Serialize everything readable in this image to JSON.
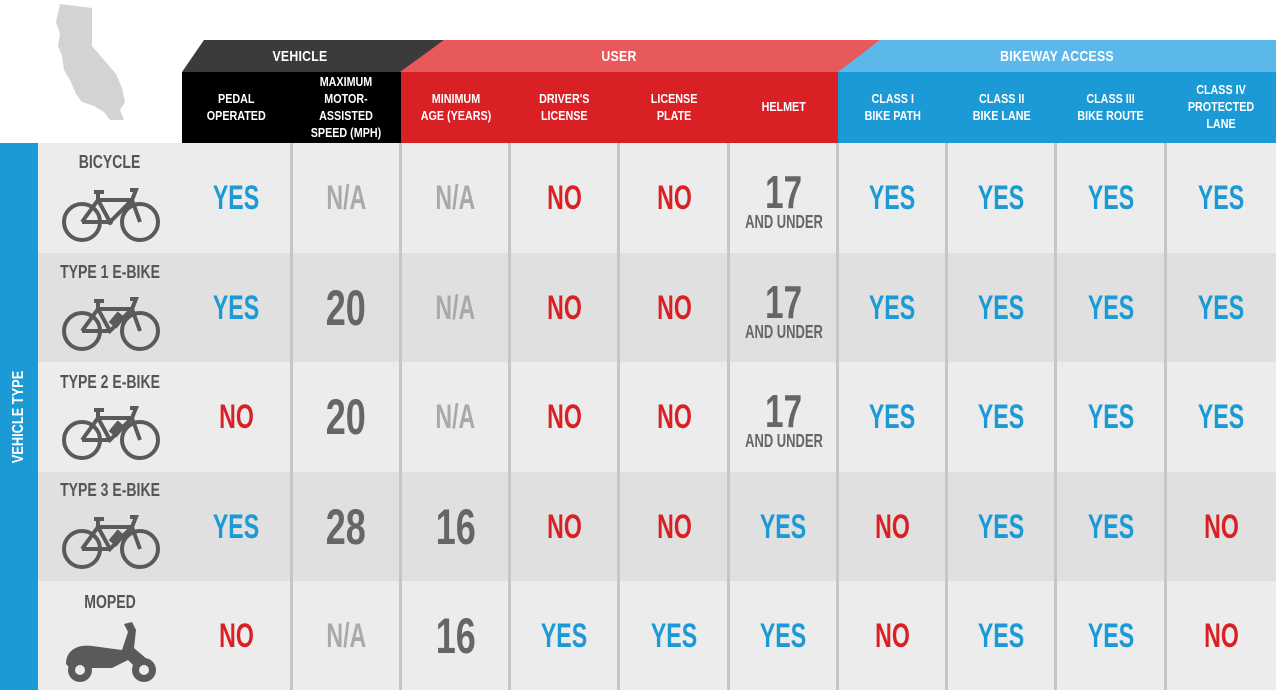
{
  "colors": {
    "vehicle_band": "#3b3b3b",
    "user_band_top": "#e8595c",
    "user_band": "#d92125",
    "access_band_top": "#5cb8ea",
    "access_band": "#1c9ad6",
    "yes": "#1c9ad6",
    "no": "#d92125",
    "na": "#a9a9a9",
    "number": "#666666"
  },
  "groups": {
    "vehicle": "VEHICLE",
    "user": "USER",
    "access": "BIKEWAY ACCESS"
  },
  "side_label": "VEHICLE TYPE",
  "columns": [
    "PEDAL\nOPERATED",
    "MAXIMUM\nMOTOR-ASSISTED\nSPEED (MPH)",
    "MINIMUM\nAGE (YEARS)",
    "DRIVER'S\nLICENSE",
    "LICENSE\nPLATE",
    "HELMET",
    "CLASS I\nBIKE PATH",
    "CLASS II\nBIKE LANE",
    "CLASS III\nBIKE ROUTE",
    "CLASS IV\nPROTECTED LANE"
  ],
  "rows": [
    {
      "label": "BICYCLE",
      "icon": "bicycle-icon",
      "cells": [
        {
          "text": "YES",
          "kind": "yes"
        },
        {
          "text": "N/A",
          "kind": "na"
        },
        {
          "text": "N/A",
          "kind": "na"
        },
        {
          "text": "NO",
          "kind": "no"
        },
        {
          "text": "NO",
          "kind": "no"
        },
        {
          "text": "17",
          "sub": "AND UNDER",
          "kind": "num"
        },
        {
          "text": "YES",
          "kind": "yes"
        },
        {
          "text": "YES",
          "kind": "yes"
        },
        {
          "text": "YES",
          "kind": "yes"
        },
        {
          "text": "YES",
          "kind": "yes"
        }
      ]
    },
    {
      "label": "TYPE 1 E-BIKE",
      "icon": "ebike-icon",
      "cells": [
        {
          "text": "YES",
          "kind": "yes"
        },
        {
          "text": "20",
          "kind": "num"
        },
        {
          "text": "N/A",
          "kind": "na"
        },
        {
          "text": "NO",
          "kind": "no"
        },
        {
          "text": "NO",
          "kind": "no"
        },
        {
          "text": "17",
          "sub": "AND UNDER",
          "kind": "num"
        },
        {
          "text": "YES",
          "kind": "yes"
        },
        {
          "text": "YES",
          "kind": "yes"
        },
        {
          "text": "YES",
          "kind": "yes"
        },
        {
          "text": "YES",
          "kind": "yes"
        }
      ]
    },
    {
      "label": "TYPE 2 E-BIKE",
      "icon": "ebike-icon",
      "cells": [
        {
          "text": "NO",
          "kind": "no"
        },
        {
          "text": "20",
          "kind": "num"
        },
        {
          "text": "N/A",
          "kind": "na"
        },
        {
          "text": "NO",
          "kind": "no"
        },
        {
          "text": "NO",
          "kind": "no"
        },
        {
          "text": "17",
          "sub": "AND UNDER",
          "kind": "num"
        },
        {
          "text": "YES",
          "kind": "yes"
        },
        {
          "text": "YES",
          "kind": "yes"
        },
        {
          "text": "YES",
          "kind": "yes"
        },
        {
          "text": "YES",
          "kind": "yes"
        }
      ]
    },
    {
      "label": "TYPE 3 E-BIKE",
      "icon": "ebike-icon",
      "cells": [
        {
          "text": "YES",
          "kind": "yes"
        },
        {
          "text": "28",
          "kind": "num"
        },
        {
          "text": "16",
          "kind": "num"
        },
        {
          "text": "NO",
          "kind": "no"
        },
        {
          "text": "NO",
          "kind": "no"
        },
        {
          "text": "YES",
          "kind": "yes"
        },
        {
          "text": "NO",
          "kind": "no"
        },
        {
          "text": "YES",
          "kind": "yes"
        },
        {
          "text": "YES",
          "kind": "yes"
        },
        {
          "text": "NO",
          "kind": "no"
        }
      ]
    },
    {
      "label": "MOPED",
      "icon": "moped-icon",
      "cells": [
        {
          "text": "NO",
          "kind": "no"
        },
        {
          "text": "N/A",
          "kind": "na"
        },
        {
          "text": "16",
          "kind": "num"
        },
        {
          "text": "YES",
          "kind": "yes"
        },
        {
          "text": "YES",
          "kind": "yes"
        },
        {
          "text": "YES",
          "kind": "yes"
        },
        {
          "text": "NO",
          "kind": "no"
        },
        {
          "text": "YES",
          "kind": "yes"
        },
        {
          "text": "YES",
          "kind": "yes"
        },
        {
          "text": "NO",
          "kind": "no"
        }
      ]
    }
  ]
}
